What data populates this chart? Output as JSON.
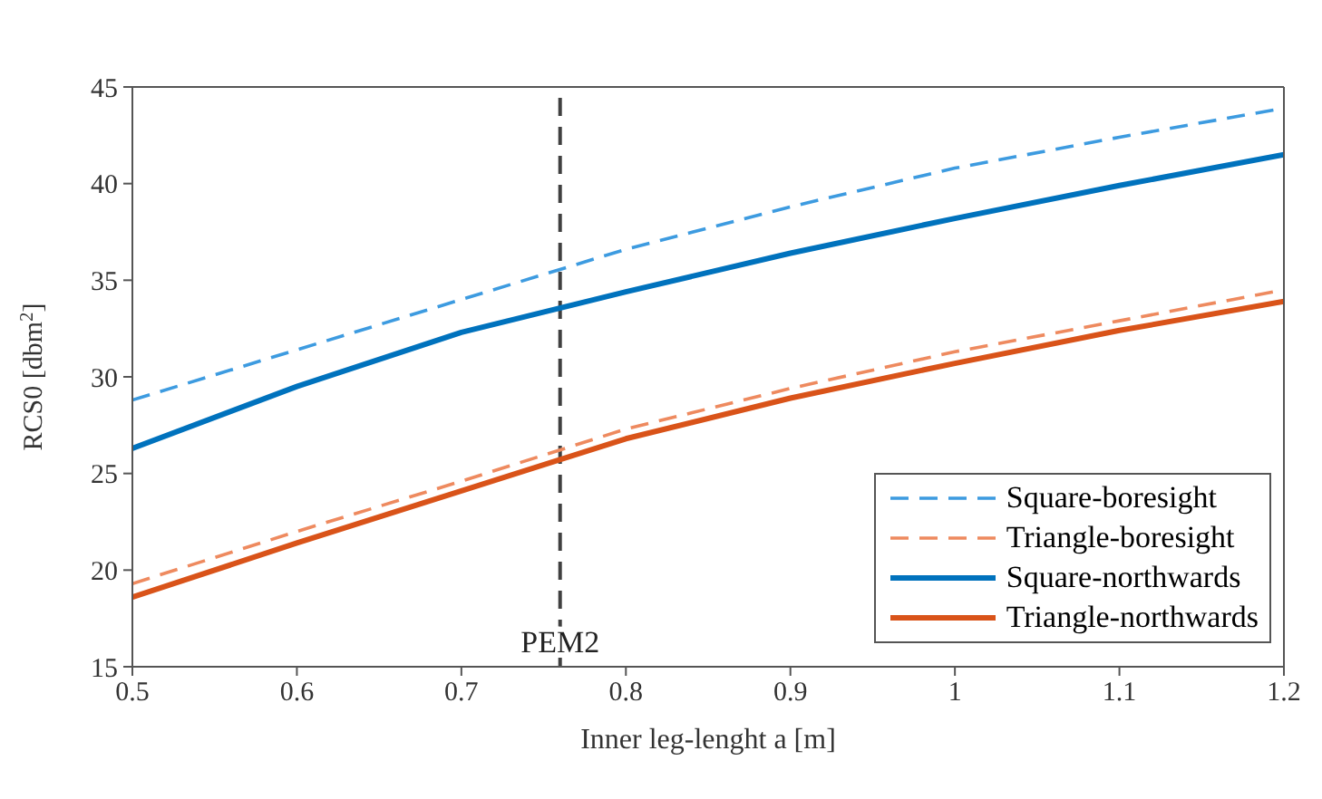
{
  "chart_data": {
    "type": "line",
    "xlabel": "Inner leg-lenght a [m]",
    "ylabel": "RCS0 [dbm$^{2}$]",
    "x": [
      0.5,
      0.6,
      0.7,
      0.8,
      0.9,
      1.0,
      1.1,
      1.2
    ],
    "xlim": [
      0.5,
      1.2
    ],
    "xticks": [
      0.5,
      0.6,
      0.7,
      0.8,
      0.9,
      1,
      1.1,
      1.2
    ],
    "ylim": [
      15,
      45
    ],
    "yticks": [
      15,
      20,
      25,
      30,
      35,
      40,
      45
    ],
    "grid": false,
    "legend": "bottom right",
    "marker": "none",
    "series": [
      {
        "name": "Square-boresight",
        "color": "#3d9be0",
        "line_style": "dashed",
        "values": [
          28.8,
          31.4,
          34.0,
          36.6,
          38.8,
          40.8,
          42.4,
          43.9
        ]
      },
      {
        "name": "Triangle-boresight",
        "color": "#ee8a5f",
        "line_style": "dashed",
        "values": [
          19.3,
          22.0,
          24.6,
          27.3,
          29.4,
          31.3,
          32.9,
          34.5
        ]
      },
      {
        "name": "Square-northwards",
        "color": "#0072bd",
        "line_style": "solid",
        "values": [
          26.3,
          29.5,
          32.3,
          34.4,
          36.4,
          38.2,
          39.9,
          41.5
        ]
      },
      {
        "name": "Triangle-northwards",
        "color": "#d95319",
        "line_style": "solid",
        "values": [
          18.6,
          21.4,
          24.1,
          26.8,
          28.9,
          30.7,
          32.4,
          33.9
        ]
      }
    ],
    "ref_lines": [
      {
        "axis": "x",
        "value": 0.76,
        "label": "PEM2",
        "color": "#404040",
        "line_style": "dashed"
      }
    ]
  }
}
